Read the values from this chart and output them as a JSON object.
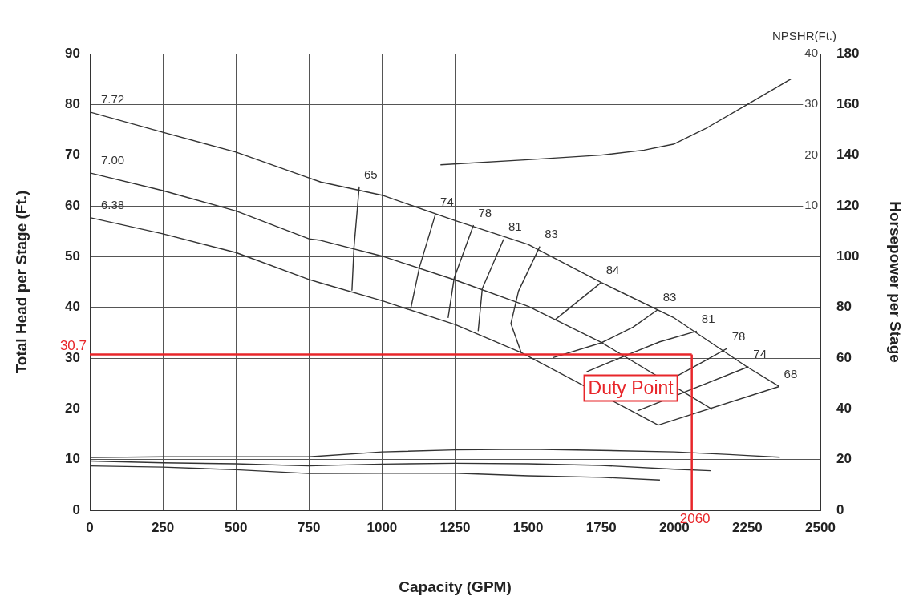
{
  "chart_data": {
    "type": "line",
    "xlabel": "Capacity (GPM)",
    "ylabel": "Total Head per Stage (Ft.)",
    "y2label": "Horsepower per Stage",
    "y3label": "NPSHR(Ft.)",
    "xlim": [
      0,
      2500
    ],
    "xticks": [
      0,
      250,
      500,
      750,
      1000,
      1250,
      1500,
      1750,
      2000,
      2250,
      2500
    ],
    "ylim": [
      0,
      90
    ],
    "yticks": [
      0,
      10,
      20,
      30,
      40,
      50,
      60,
      70,
      80,
      90
    ],
    "y2lim": [
      0,
      180
    ],
    "y2ticks": [
      0,
      20,
      40,
      60,
      80,
      100,
      120,
      140,
      160,
      180
    ],
    "y3lim": [
      -50,
      40
    ],
    "y3ticks": [
      10,
      20,
      30,
      40
    ],
    "grid": true,
    "marker": "none",
    "series": [
      {
        "name": "7.72",
        "color": "#333333",
        "x": [
          0,
          250,
          500,
          750,
          790,
          1000,
          1250,
          1500,
          1750,
          2000,
          2248,
          2359
        ],
        "values": [
          78.5,
          74.5,
          70.6,
          65.5,
          64.7,
          62.1,
          57.1,
          52.4,
          44.9,
          37.9,
          28.3,
          24.4
        ]
      },
      {
        "name": "7.00",
        "color": "#333333",
        "x": [
          0,
          250,
          500,
          750,
          790,
          1000,
          1250,
          1500,
          1750,
          2130
        ],
        "values": [
          66.5,
          63,
          59,
          53.5,
          53.2,
          50.1,
          45.4,
          40.2,
          33.1,
          19.9
        ]
      },
      {
        "name": "6.38",
        "color": "#333333",
        "x": [
          0,
          250,
          500,
          750,
          790,
          1000,
          1250,
          1476,
          1945
        ],
        "values": [
          57.7,
          54.5,
          50.8,
          45.5,
          44.8,
          41.3,
          36.6,
          31.1,
          16.8
        ]
      },
      {
        "name": "65",
        "color": "#333333",
        "x": [
          922,
          904,
          897
        ],
        "values": [
          63.8,
          51.8,
          43.3
        ]
      },
      {
        "name": "74",
        "color": "#333333",
        "x": [
          1183,
          1128,
          1098
        ],
        "values": [
          58.4,
          47.9,
          39.7
        ]
      },
      {
        "name": "78",
        "color": "#333333",
        "x": [
          1313,
          1247,
          1226
        ],
        "values": [
          56.2,
          45.8,
          37.9
        ]
      },
      {
        "name": "81",
        "color": "#333333",
        "x": [
          1416,
          1343,
          1329
        ],
        "values": [
          53.4,
          43.7,
          35.3
        ]
      },
      {
        "name": "83",
        "color": "#333333",
        "x": [
          1540,
          1467,
          1441,
          1476
        ],
        "values": [
          52,
          43.2,
          36.8,
          31.1
        ]
      },
      {
        "name": "84",
        "color": "#333333",
        "x": [
          1593,
          1750
        ],
        "values": [
          37.6,
          44.9
        ]
      },
      {
        "name": "83",
        "color": "#333333",
        "x": [
          1586,
          1750,
          1859,
          1945
        ],
        "values": [
          30.1,
          33,
          36.1,
          39.6
        ]
      },
      {
        "name": "81",
        "color": "#333333",
        "x": [
          1700,
          1859,
          1950,
          2077
        ],
        "values": [
          27.3,
          31.1,
          33.2,
          35.3
        ]
      },
      {
        "name": "78",
        "color": "#333333",
        "x": [
          2007,
          2100,
          2181
        ],
        "values": [
          26.4,
          29.3,
          31.9
        ]
      },
      {
        "name": "74",
        "color": "#333333",
        "x": [
          1874,
          2053,
          2254
        ],
        "values": [
          19.6,
          23.7,
          28.3
        ]
      },
      {
        "name": "68",
        "color": "#333333",
        "x": [
          1945,
          2359
        ],
        "values": [
          16.8,
          24.4
        ]
      },
      {
        "color": "#333333",
        "axis": "y2",
        "x": [
          0,
          250,
          500,
          750,
          1000,
          1250,
          1500,
          1750,
          2000,
          2188,
          2250,
          2361
        ],
        "values": [
          20.8,
          21.1,
          21.1,
          21.1,
          23,
          23.8,
          24.1,
          23.6,
          23,
          22,
          21.6,
          20.9
        ]
      },
      {
        "color": "#333333",
        "axis": "y2",
        "x": [
          0,
          250,
          500,
          750,
          850,
          1000,
          1250,
          1500,
          1750,
          2000,
          2124
        ],
        "values": [
          19.4,
          18.7,
          18.3,
          17.5,
          17.8,
          18.2,
          18.5,
          18.3,
          17.7,
          16.2,
          15.6
        ]
      },
      {
        "color": "#333333",
        "axis": "y2",
        "x": [
          0,
          250,
          500,
          750,
          1000,
          1250,
          1500,
          1750,
          1951
        ],
        "values": [
          17.5,
          17,
          16,
          14.5,
          14.6,
          14.6,
          13.6,
          13,
          11.9
        ]
      },
      {
        "color": "#333333",
        "axis": "y3",
        "x": [
          1200,
          1500,
          1750,
          1897,
          2000,
          2106,
          2250,
          2399
        ],
        "values": [
          18.1,
          19.1,
          20,
          21,
          22.2,
          25.2,
          30,
          35
        ]
      }
    ],
    "ref_lines": [
      {
        "axis": "x",
        "value": 2060,
        "label": "2060",
        "color": "#e8262a"
      },
      {
        "axis": "y",
        "value": 30.7,
        "label": "30.7",
        "color": "#e8262a"
      }
    ],
    "annotations": [
      "Duty Point"
    ]
  }
}
